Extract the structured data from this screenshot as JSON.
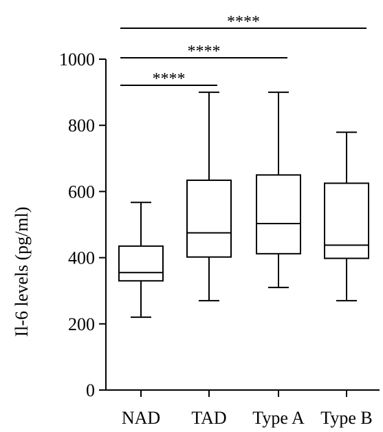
{
  "chart_data": {
    "type": "boxplot",
    "ylabel": "Il-6 levels (pg/ml)",
    "xlabel": "",
    "ylim": [
      0,
      1000
    ],
    "yticks": [
      0,
      200,
      400,
      600,
      800,
      1000
    ],
    "categories": [
      "NAD",
      "TAD",
      "Type A",
      "Type B"
    ],
    "boxes": [
      {
        "name": "NAD",
        "min": 220,
        "q1": 330,
        "median": 355,
        "q3": 435,
        "max": 567
      },
      {
        "name": "TAD",
        "min": 270,
        "q1": 402,
        "median": 475,
        "q3": 634,
        "max": 900
      },
      {
        "name": "Type A",
        "min": 310,
        "q1": 412,
        "median": 503,
        "q3": 650,
        "max": 900
      },
      {
        "name": "Type B",
        "min": 270,
        "q1": 398,
        "median": 438,
        "q3": 625,
        "max": 779
      }
    ],
    "significance": [
      {
        "from": "NAD",
        "to": "TAD",
        "label": "****"
      },
      {
        "from": "NAD",
        "to": "Type A",
        "label": "****"
      },
      {
        "from": "NAD",
        "to": "Type B",
        "label": "****"
      }
    ],
    "colors": {
      "line": "#000000",
      "box_fill": "#ffffff"
    }
  }
}
